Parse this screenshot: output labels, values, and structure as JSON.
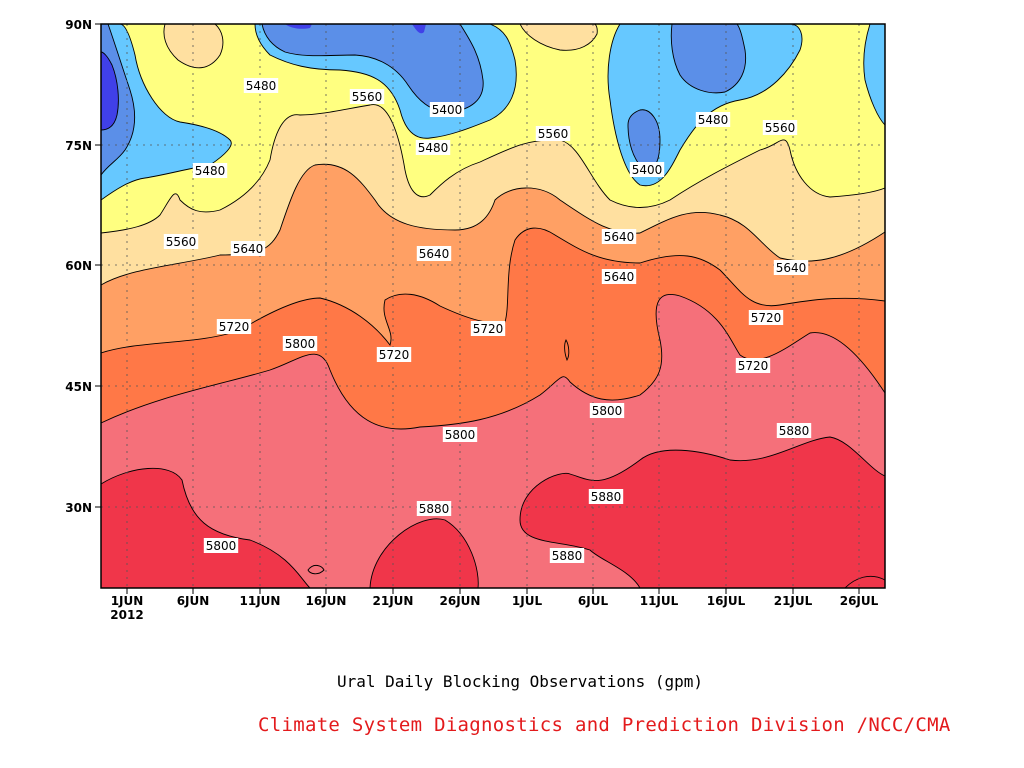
{
  "chart_data": {
    "type": "heatmap",
    "title": "Ural Daily Blocking Observations (gpm)",
    "credit": "Climate System Diagnostics and Prediction Division /NCC/CMA",
    "x_ticks": [
      "1JUN",
      "6JUN",
      "11JUN",
      "16JUN",
      "21JUN",
      "26JUN",
      "1JUL",
      "6JUL",
      "11JUL",
      "16JUL",
      "21JUL",
      "26JUL"
    ],
    "x_year": "2012",
    "y_ticks": [
      "30N",
      "45N",
      "60N",
      "75N",
      "90N"
    ],
    "ylim": [
      20,
      90
    ],
    "contour_levels": [
      5400,
      5480,
      5560,
      5640,
      5720,
      5800,
      5880
    ],
    "contour_labels": [
      "5480",
      "5560",
      "5400",
      "5480",
      "5480",
      "5400",
      "5560",
      "5480",
      "5560",
      "5560",
      "5640",
      "5640",
      "5640",
      "5640",
      "5720",
      "5640",
      "5720",
      "5720",
      "5720",
      "5800",
      "5720",
      "5800",
      "5800",
      "5880",
      "5800",
      "5880",
      "5880",
      "5880"
    ],
    "colors": {
      "below_5400": "#4040e8",
      "5400_5480": "#5b8fe8",
      "5480_5560": "#66c8ff",
      "5560_5640": "#ffff80",
      "5640_5720": "#ffe0a0",
      "5720_5800": "#ffa064",
      "5800_5880": "#ff7847",
      "5880_5960": "#f5707a",
      "above_5960": "#f0364a"
    }
  }
}
